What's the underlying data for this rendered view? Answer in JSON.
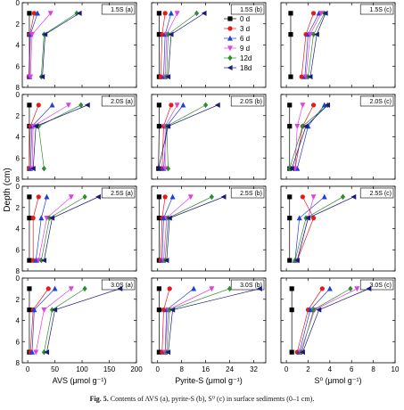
{
  "figure": {
    "caption_bold": "Fig. 5.",
    "caption_rest": "Contents of AVS (a), pyrite-S (b), S⁰ (c) in surface sediments (0–1 cm).",
    "ylabel": "Depth (cm)"
  },
  "chart_data": {
    "type": "line",
    "grid": false,
    "legend_position": "top-center",
    "depths": [
      1,
      3,
      7
    ],
    "series_names": [
      "0 d",
      "3 d",
      "6 d",
      "9 d",
      "12d",
      "18d"
    ],
    "series_colors": [
      "#000000",
      "#e41a1c",
      "#1f3fd6",
      "#e040e0",
      "#2e8b2e",
      "#1a1a7a"
    ],
    "series_markers": [
      "square",
      "circle",
      "triangle-up",
      "triangle-down",
      "diamond",
      "triangle-left"
    ],
    "columns": [
      {
        "id": "a",
        "xlabel": "AVS (μmol g⁻¹)",
        "xlim": [
          -10,
          200
        ],
        "xticks": [
          0,
          50,
          100,
          150,
          200
        ]
      },
      {
        "id": "b",
        "xlabel": "Pyrite-S (μmol g⁻¹)",
        "xlim": [
          -2,
          36
        ],
        "xticks": [
          0,
          8,
          16,
          24,
          32
        ]
      },
      {
        "id": "c",
        "xlabel": "S⁰ (μmol g⁻¹)",
        "xlim": [
          -0.5,
          10
        ],
        "xticks": [
          0,
          2,
          4,
          6,
          8,
          10
        ]
      }
    ],
    "ylim": [
      8,
      0
    ],
    "yticks": [
      0,
      2,
      4,
      6,
      8
    ],
    "rows": [
      {
        "label": "1.5S",
        "panels": [
          {
            "label": "1.5S (a)",
            "series": [
              [
                3,
                3,
                3
              ],
              [
                12,
                4,
                2
              ],
              [
                18,
                5,
                3
              ],
              [
                42,
                8,
                5
              ],
              [
                90,
                30,
                25
              ],
              [
                95,
                32,
                27
              ]
            ]
          },
          {
            "label": "1.5S (b)",
            "series": [
              [
                0.5,
                0.5,
                0.5
              ],
              [
                2.5,
                1.5,
                1
              ],
              [
                4.5,
                2.5,
                2
              ],
              [
                6.5,
                3,
                2.5
              ],
              [
                13,
                3.5,
                3
              ],
              [
                15.5,
                4.5,
                3.5
              ]
            ]
          },
          {
            "label": "1.5S (c)",
            "series": [
              [
                0.4,
                0.4,
                0.4
              ],
              [
                2.5,
                1.8,
                1.4
              ],
              [
                3,
                2,
                1.7
              ],
              [
                3.2,
                2.2,
                1.8
              ],
              [
                3.5,
                2.5,
                2
              ],
              [
                3.6,
                2.8,
                2.2
              ]
            ]
          }
        ]
      },
      {
        "label": "2.0S",
        "panels": [
          {
            "label": "2.0S (a)",
            "series": [
              [
                3,
                3,
                3
              ],
              [
                20,
                5,
                3
              ],
              [
                45,
                8,
                5
              ],
              [
                75,
                10,
                8
              ],
              [
                98,
                20,
                30
              ],
              [
                110,
                15,
                10
              ]
            ]
          },
          {
            "label": "2.0S (b)",
            "series": [
              [
                0.5,
                0.5,
                0.3
              ],
              [
                4.5,
                2,
                1.5
              ],
              [
                8.5,
                3,
                2
              ],
              [
                6.5,
                2.5,
                2.5
              ],
              [
                16,
                3,
                3.5
              ],
              [
                20,
                3.5,
                0.3
              ]
            ]
          },
          {
            "label": "2.0S (c)",
            "series": [
              [
                0.3,
                0.3,
                0.3
              ],
              [
                2.5,
                1.5,
                0.8
              ],
              [
                3.5,
                2,
                1
              ],
              [
                1.5,
                1,
                0.8
              ],
              [
                3.8,
                1.5,
                0.3
              ],
              [
                3.8,
                1.8,
                0.5
              ]
            ]
          }
        ]
      },
      {
        "label": "2.5S",
        "panels": [
          {
            "label": "2.5S (a)",
            "series": [
              [
                3,
                3,
                3
              ],
              [
                20,
                10,
                10
              ],
              [
                35,
                25,
                15
              ],
              [
                80,
                35,
                20
              ],
              [
                105,
                40,
                25
              ],
              [
                130,
                45,
                30
              ]
            ]
          },
          {
            "label": "2.5S (b)",
            "series": [
              [
                0.5,
                0.5,
                0.5
              ],
              [
                2.5,
                1.5,
                1
              ],
              [
                5,
                2,
                1.5
              ],
              [
                11,
                3,
                2
              ],
              [
                18,
                3.5,
                2.5
              ],
              [
                22,
                4,
                3
              ]
            ]
          },
          {
            "label": "2.5S (c)",
            "series": [
              [
                0.3,
                0.3,
                0.3
              ],
              [
                1.5,
                2.5,
                1
              ],
              [
                3.5,
                1.2,
                0.8
              ],
              [
                2.5,
                2,
                1
              ],
              [
                5.2,
                1.8,
                0.8
              ],
              [
                6.2,
                2,
                1
              ]
            ]
          }
        ]
      },
      {
        "label": "3.0S",
        "panels": [
          {
            "label": "3.0S (a)",
            "series": [
              [
                3,
                3,
                3
              ],
              [
                38,
                10,
                5
              ],
              [
                50,
                12,
                8
              ],
              [
                80,
                30,
                15
              ],
              [
                105,
                45,
                30
              ],
              [
                170,
                50,
                35
              ]
            ]
          },
          {
            "label": "3.0S (b)",
            "series": [
              [
                0.5,
                0.5,
                0.5
              ],
              [
                4,
                2,
                1.5
              ],
              [
                12,
                3,
                2.5
              ],
              [
                18,
                3.5,
                2.5
              ],
              [
                24,
                4,
                3
              ],
              [
                34,
                5,
                3.5
              ]
            ]
          },
          {
            "label": "3.0S (c)",
            "series": [
              [
                0.5,
                0.5,
                0.5
              ],
              [
                3.3,
                2,
                1
              ],
              [
                4,
                2.2,
                1.2
              ],
              [
                6.5,
                2.6,
                1.3
              ],
              [
                5.9,
                2.5,
                1.4
              ],
              [
                7.6,
                3,
                1.5
              ]
            ]
          }
        ]
      }
    ]
  }
}
